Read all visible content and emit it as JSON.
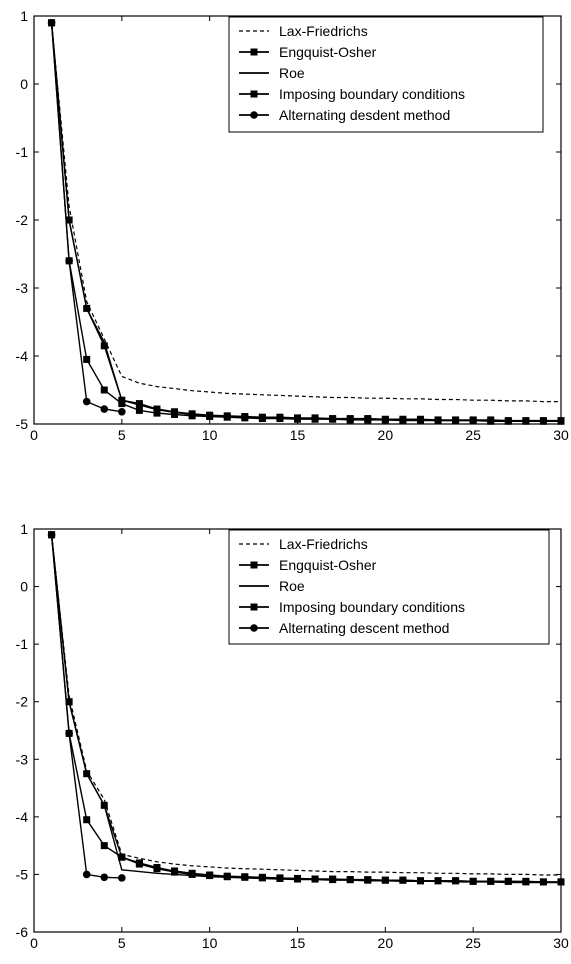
{
  "chart_data": [
    {
      "type": "line",
      "title": "",
      "xlabel": "",
      "ylabel": "",
      "xlim": [
        0,
        30
      ],
      "ylim": [
        -5,
        1
      ],
      "xticks": [
        "0",
        "5",
        "10",
        "15",
        "20",
        "25",
        "30"
      ],
      "yticks": [
        "1",
        "0",
        "-1",
        "-2",
        "-3",
        "-4",
        "-5"
      ],
      "grid": false,
      "legend_position": "top-right",
      "series": [
        {
          "name": "Lax-Friedrichs",
          "style": "dashed",
          "marker": "none",
          "x": [
            1,
            2,
            3,
            4,
            5,
            6,
            7,
            8,
            9,
            10,
            11,
            12,
            13,
            14,
            15,
            16,
            17,
            18,
            19,
            20,
            21,
            22,
            23,
            24,
            25,
            26,
            27,
            28,
            29,
            30
          ],
          "values": [
            0.9,
            -1.8,
            -3.2,
            -3.75,
            -4.3,
            -4.4,
            -4.45,
            -4.48,
            -4.51,
            -4.53,
            -4.55,
            -4.56,
            -4.57,
            -4.58,
            -4.59,
            -4.6,
            -4.61,
            -4.61,
            -4.62,
            -4.62,
            -4.63,
            -4.63,
            -4.64,
            -4.64,
            -4.65,
            -4.65,
            -4.66,
            -4.66,
            -4.67,
            -4.67
          ]
        },
        {
          "name": "Engquist-Osher",
          "style": "solid",
          "marker": "square",
          "x": [
            1,
            2,
            3,
            4,
            5,
            6,
            7,
            8,
            9,
            10,
            11,
            12,
            13,
            14,
            15,
            16,
            17,
            18,
            19,
            20,
            21,
            22,
            23,
            24,
            25,
            26,
            27,
            28,
            29,
            30
          ],
          "values": [
            0.9,
            -2.0,
            -3.3,
            -3.85,
            -4.65,
            -4.7,
            -4.78,
            -4.82,
            -4.85,
            -4.87,
            -4.88,
            -4.89,
            -4.9,
            -4.9,
            -4.91,
            -4.91,
            -4.92,
            -4.92,
            -4.92,
            -4.93,
            -4.93,
            -4.93,
            -4.94,
            -4.94,
            -4.94,
            -4.94,
            -4.95,
            -4.95,
            -4.95,
            -4.95
          ]
        },
        {
          "name": "Roe",
          "style": "solid",
          "marker": "none",
          "x": [
            1,
            2,
            3,
            4,
            5,
            6,
            7,
            8,
            9,
            10,
            11,
            12,
            13,
            14,
            15,
            16,
            17,
            18,
            19,
            20,
            21,
            22,
            23,
            24,
            25,
            26,
            27,
            28,
            29,
            30
          ],
          "values": [
            0.9,
            -2.0,
            -3.3,
            -3.8,
            -4.65,
            -4.72,
            -4.79,
            -4.83,
            -4.86,
            -4.88,
            -4.89,
            -4.9,
            -4.91,
            -4.91,
            -4.92,
            -4.92,
            -4.93,
            -4.93,
            -4.93,
            -4.94,
            -4.94,
            -4.94,
            -4.95,
            -4.95,
            -4.95,
            -4.95,
            -4.96,
            -4.96,
            -4.96,
            -4.96
          ]
        },
        {
          "name": "Imposing boundary conditions",
          "style": "solid",
          "marker": "square",
          "x": [
            1,
            2,
            3,
            4,
            5,
            6,
            7,
            8,
            9,
            10,
            11,
            12,
            13,
            14,
            15,
            16,
            17,
            18,
            19,
            20,
            21,
            22,
            23,
            24,
            25,
            26,
            27,
            28,
            29,
            30
          ],
          "values": [
            0.9,
            -2.6,
            -4.05,
            -4.5,
            -4.7,
            -4.8,
            -4.84,
            -4.86,
            -4.88,
            -4.89,
            -4.9,
            -4.91,
            -4.92,
            -4.92,
            -4.93,
            -4.93,
            -4.93,
            -4.94,
            -4.94,
            -4.94,
            -4.95,
            -4.95,
            -4.95,
            -4.95,
            -4.95,
            -4.96,
            -4.96,
            -4.96,
            -4.96,
            -4.96
          ]
        },
        {
          "name": "Alternating desdent method",
          "style": "solid",
          "marker": "circle",
          "x": [
            1,
            2,
            3,
            4,
            5
          ],
          "values": [
            0.9,
            -2.6,
            -4.67,
            -4.78,
            -4.82
          ]
        }
      ]
    },
    {
      "type": "line",
      "title": "",
      "xlabel": "",
      "ylabel": "",
      "xlim": [
        0,
        30
      ],
      "ylim": [
        -6,
        1
      ],
      "xticks": [
        "0",
        "5",
        "10",
        "15",
        "20",
        "25",
        "30"
      ],
      "yticks": [
        "1",
        "0",
        "-1",
        "-2",
        "-3",
        "-4",
        "-5",
        "-6"
      ],
      "grid": false,
      "legend_position": "top-right",
      "series": [
        {
          "name": "Lax-Friedrichs",
          "style": "dashed",
          "marker": "none",
          "x": [
            1,
            2,
            3,
            4,
            5,
            6,
            7,
            8,
            9,
            10,
            11,
            12,
            13,
            14,
            15,
            16,
            17,
            18,
            19,
            20,
            21,
            22,
            23,
            24,
            25,
            26,
            27,
            28,
            29,
            30
          ],
          "values": [
            0.9,
            -1.9,
            -3.2,
            -3.7,
            -4.65,
            -4.72,
            -4.78,
            -4.82,
            -4.85,
            -4.87,
            -4.89,
            -4.9,
            -4.91,
            -4.92,
            -4.93,
            -4.94,
            -4.95,
            -4.95,
            -4.96,
            -4.96,
            -4.97,
            -4.97,
            -4.98,
            -4.98,
            -4.99,
            -4.99,
            -5.0,
            -5.0,
            -5.01,
            -5.01
          ]
        },
        {
          "name": "Engquist-Osher",
          "style": "solid",
          "marker": "square",
          "x": [
            1,
            2,
            3,
            4,
            5,
            6,
            7,
            8,
            9,
            10,
            11,
            12,
            13,
            14,
            15,
            16,
            17,
            18,
            19,
            20,
            21,
            22,
            23,
            24,
            25,
            26,
            27,
            28,
            29,
            30
          ],
          "values": [
            0.9,
            -2.0,
            -3.25,
            -3.8,
            -4.7,
            -4.8,
            -4.88,
            -4.94,
            -4.98,
            -5.01,
            -5.03,
            -5.04,
            -5.05,
            -5.06,
            -5.07,
            -5.08,
            -5.08,
            -5.09,
            -5.09,
            -5.1,
            -5.1,
            -5.11,
            -5.11,
            -5.11,
            -5.12,
            -5.12,
            -5.12,
            -5.13,
            -5.13,
            -5.13
          ]
        },
        {
          "name": "Roe",
          "style": "solid",
          "marker": "none",
          "x": [
            1,
            2,
            3,
            4,
            5,
            6,
            7,
            8,
            9,
            10,
            11,
            12,
            13,
            14,
            15,
            16,
            17,
            18,
            19,
            20,
            21,
            22,
            23,
            24,
            25,
            26,
            27,
            28,
            29,
            30
          ],
          "values": [
            0.9,
            -2.0,
            -3.25,
            -3.8,
            -4.92,
            -4.95,
            -4.98,
            -5.0,
            -5.02,
            -5.04,
            -5.05,
            -5.06,
            -5.07,
            -5.08,
            -5.09,
            -5.09,
            -5.1,
            -5.1,
            -5.11,
            -5.11,
            -5.12,
            -5.12,
            -5.12,
            -5.13,
            -5.13,
            -5.13,
            -5.14,
            -5.14,
            -5.14,
            -5.14
          ]
        },
        {
          "name": "Imposing boundary conditions",
          "style": "solid",
          "marker": "square",
          "x": [
            1,
            2,
            3,
            4,
            5,
            6,
            7,
            8,
            9,
            10,
            11,
            12,
            13,
            14,
            15,
            16,
            17,
            18,
            19,
            20,
            21,
            22,
            23,
            24,
            25,
            26,
            27,
            28,
            29,
            30
          ],
          "values": [
            0.9,
            -2.55,
            -4.05,
            -4.5,
            -4.7,
            -4.82,
            -4.9,
            -4.96,
            -5.0,
            -5.02,
            -5.04,
            -5.05,
            -5.06,
            -5.07,
            -5.08,
            -5.08,
            -5.09,
            -5.09,
            -5.1,
            -5.1,
            -5.1,
            -5.11,
            -5.11,
            -5.11,
            -5.12,
            -5.12,
            -5.12,
            -5.12,
            -5.13,
            -5.13
          ]
        },
        {
          "name": "Alternating descent method",
          "style": "solid",
          "marker": "circle",
          "x": [
            1,
            2,
            3,
            4,
            5
          ],
          "values": [
            0.9,
            -2.55,
            -5.0,
            -5.05,
            -5.06
          ]
        }
      ]
    }
  ]
}
